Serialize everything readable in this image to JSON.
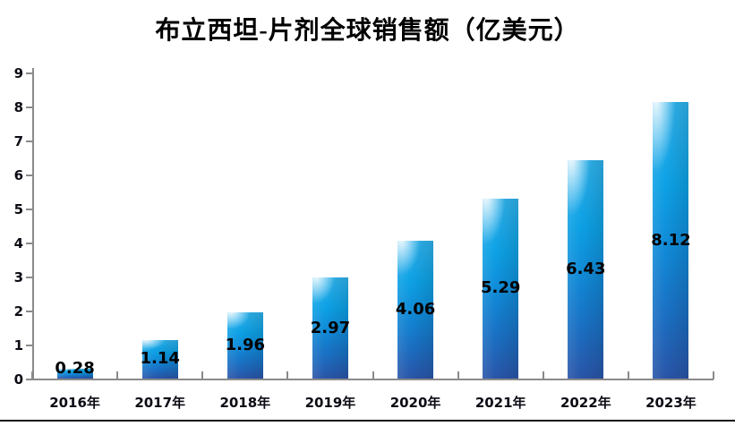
{
  "title": "布立西坦-片剂全球销售额（亿美元）",
  "chart_data": {
    "type": "bar",
    "title": "布立西坦-片剂全球销售额（亿美元）",
    "categories": [
      "2016年",
      "2017年",
      "2018年",
      "2019年",
      "2020年",
      "2021年",
      "2022年",
      "2023年"
    ],
    "values": [
      0.28,
      1.14,
      1.96,
      2.97,
      4.06,
      5.29,
      6.43,
      8.12
    ],
    "data_labels": [
      "0.28",
      "1.14",
      "1.96",
      "2.97",
      "4.06",
      "5.29",
      "6.43",
      "8.12"
    ],
    "xlabel": "",
    "ylabel": "",
    "ylim": [
      0,
      9
    ],
    "ytick_step": 1,
    "ytick_labels": [
      "0",
      "1",
      "2",
      "3",
      "4",
      "5",
      "6",
      "7",
      "8",
      "9"
    ],
    "grid": false,
    "legend": "none",
    "data_label_position": "inside-center",
    "colors": {
      "bar_top": "#2fb2ec",
      "bar_mid": "#0da1e5",
      "bar_bottom": "#2a55a8",
      "axis": "#8a8a8a",
      "text": "#000000",
      "background": "#ffffff"
    }
  }
}
